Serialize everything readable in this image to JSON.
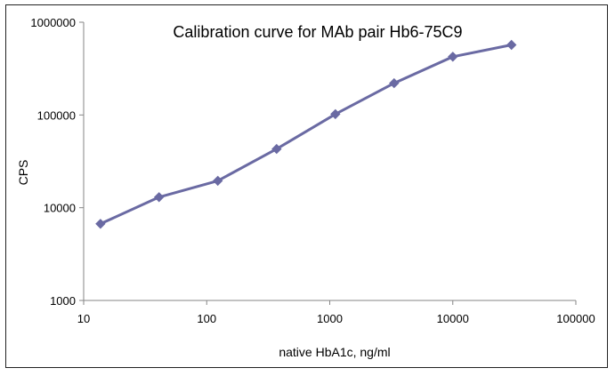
{
  "chart_data": {
    "type": "line",
    "title": "Calibration curve for MAb pair Hb6-75C9",
    "xlabel": "native HbA1c, ng/ml",
    "ylabel": "CPS",
    "x_scale": "log",
    "y_scale": "log",
    "xlim": [
      10,
      100000
    ],
    "ylim": [
      1000,
      1000000
    ],
    "x_ticks": [
      "10",
      "100",
      "1000",
      "10000",
      "100000"
    ],
    "y_ticks": [
      "1000",
      "10000",
      "100000",
      "1000000"
    ],
    "grid": false,
    "legend": "none",
    "series": [
      {
        "x": [
          13.7,
          41,
          123,
          370,
          1111,
          3333,
          10000,
          30000
        ],
        "y": [
          6700,
          13000,
          19500,
          43000,
          102000,
          220000,
          425000,
          570000
        ]
      }
    ],
    "colors": {
      "line": "#6a6aa3",
      "marker": "#6a6aa3",
      "axis": "#868686"
    }
  }
}
